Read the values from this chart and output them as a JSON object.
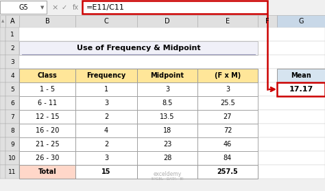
{
  "title": "Use of Frequency & Midpoint",
  "formula_bar_text": "=E11/C11",
  "cell_ref": "G5",
  "col_headers": [
    "Class",
    "Frequency",
    "Midpoint",
    "(F x M)"
  ],
  "rows": [
    [
      "1 - 5",
      "1",
      "3",
      "3"
    ],
    [
      "6 - 11",
      "3",
      "8.5",
      "25.5"
    ],
    [
      "12 - 15",
      "2",
      "13.5",
      "27"
    ],
    [
      "16 - 20",
      "4",
      "18",
      "72"
    ],
    [
      "21 - 25",
      "2",
      "23",
      "46"
    ],
    [
      "26 - 30",
      "3",
      "28",
      "84"
    ]
  ],
  "total_row": [
    "Total",
    "15",
    "",
    "257.5"
  ],
  "mean_label": "Mean",
  "mean_value": "17.17",
  "header_bg": "#FFE699",
  "total_bg": "#FFD7C9",
  "mean_header_bg": "#D6E4F0",
  "formula_box_color": "#CC0000",
  "arrow_color": "#CC0000",
  "spreadsheet_bg": "#f0f0f0",
  "cell_header_bg": "#e0e0e0",
  "col_header_selected_bg": "#c8d8e8",
  "white": "#ffffff",
  "title_bg": "#f0f0f8",
  "grid_light": "#cccccc",
  "grid_dark": "#999999",
  "watermark_color": "#b0b0b0"
}
